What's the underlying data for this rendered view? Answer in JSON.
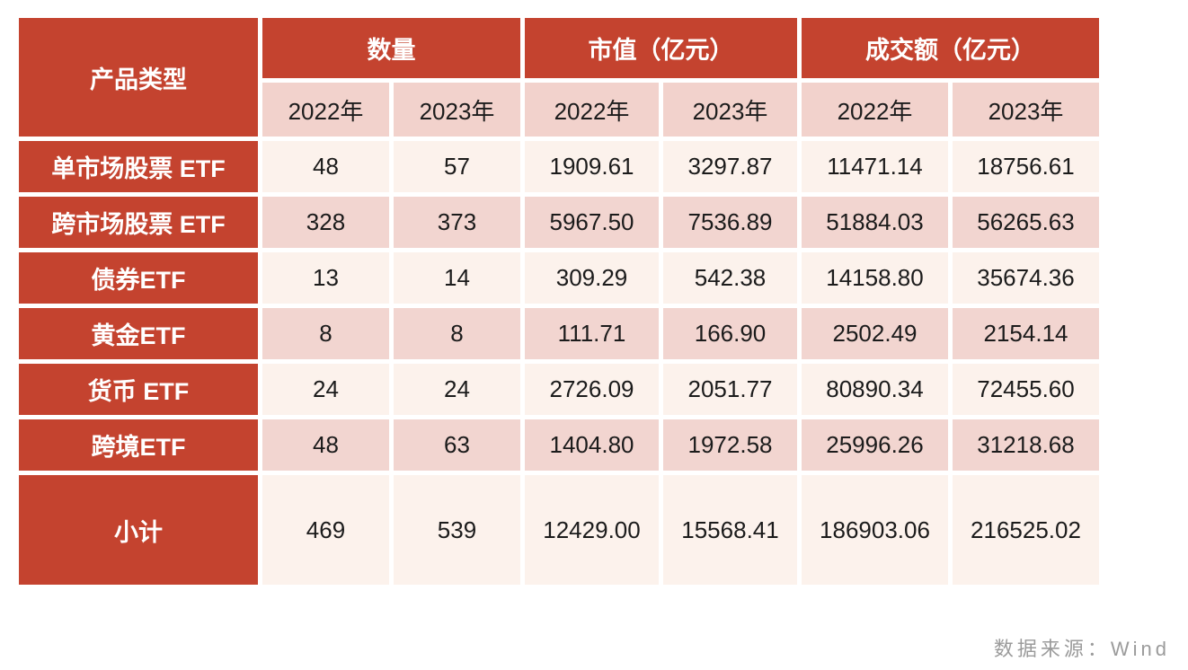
{
  "colors": {
    "header_red": "#C4432F",
    "subheader_pink": "#F2D2CC",
    "row_light": "#FCF2EC",
    "row_pink": "#F2D5D0",
    "text_dark": "#1B1B1B",
    "source_gray": "#9B9B9B"
  },
  "source_note": "数据来源：Wind",
  "chart_data": {
    "type": "table",
    "corner_header": "产品类型",
    "group_headers": [
      "数量",
      "市值（亿元）",
      "成交额（亿元）"
    ],
    "year_headers": [
      "2022年",
      "2023年",
      "2022年",
      "2023年",
      "2022年",
      "2023年"
    ],
    "rows": [
      {
        "label": "单市场股票 ETF",
        "values": [
          "48",
          "57",
          "1909.61",
          "3297.87",
          "11471.14",
          "18756.61"
        ]
      },
      {
        "label": "跨市场股票 ETF",
        "values": [
          "328",
          "373",
          "5967.50",
          "7536.89",
          "51884.03",
          "56265.63"
        ]
      },
      {
        "label": "债券ETF",
        "values": [
          "13",
          "14",
          "309.29",
          "542.38",
          "14158.80",
          "35674.36"
        ]
      },
      {
        "label": "黄金ETF",
        "values": [
          "8",
          "8",
          "111.71",
          "166.90",
          "2502.49",
          "2154.14"
        ]
      },
      {
        "label": "货币 ETF",
        "values": [
          "24",
          "24",
          "2726.09",
          "2051.77",
          "80890.34",
          "72455.60"
        ]
      },
      {
        "label": "跨境ETF",
        "values": [
          "48",
          "63",
          "1404.80",
          "1972.58",
          "25996.26",
          "31218.68"
        ]
      },
      {
        "label": "小计",
        "values": [
          "469",
          "539",
          "12429.00",
          "15568.41",
          "186903.06",
          "216525.02"
        ]
      }
    ]
  }
}
